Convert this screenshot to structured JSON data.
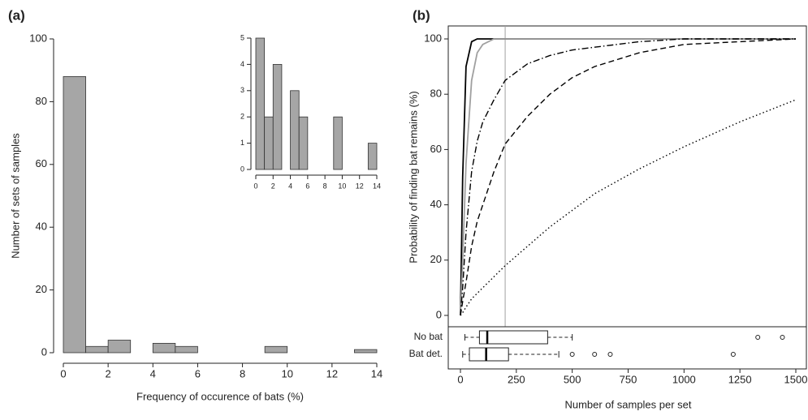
{
  "chart_data": [
    {
      "type": "histogram",
      "panel_label": "(a)",
      "xlabel": "Frequency of occurence of bats (%)",
      "ylabel": "Number of sets of samples",
      "bins": [
        0,
        1,
        2,
        3,
        4,
        5,
        6,
        7,
        8,
        9,
        10,
        11,
        12,
        13,
        14
      ],
      "values": [
        88,
        2,
        4,
        0,
        3,
        2,
        0,
        0,
        0,
        2,
        0,
        0,
        0,
        1
      ],
      "color": "#a6a6a6",
      "xlim": [
        0,
        14
      ],
      "xticks": [
        0,
        2,
        4,
        6,
        8,
        10,
        12,
        14
      ],
      "ylim": [
        0,
        100
      ],
      "yticks": [
        0,
        20,
        40,
        60,
        80,
        100
      ]
    },
    {
      "type": "histogram",
      "bins": [
        0,
        1,
        2,
        3,
        4,
        5,
        6,
        7,
        8,
        9,
        10,
        11,
        12,
        13,
        14
      ],
      "values": [
        5,
        2,
        4,
        0,
        3,
        2,
        0,
        0,
        0,
        2,
        0,
        0,
        0,
        1
      ],
      "color": "#a6a6a6",
      "xlim": [
        0,
        14
      ],
      "xticks": [
        0,
        2,
        4,
        6,
        8,
        10,
        12,
        14
      ],
      "ylim": [
        0,
        5
      ],
      "yticks": [
        0,
        1,
        2,
        3,
        4,
        5
      ]
    },
    {
      "type": "line",
      "panel_label": "(b)",
      "ylabel": "Probability of finding bat remains (%)",
      "x": [
        0,
        10,
        25,
        50,
        75,
        100,
        150,
        200,
        300,
        400,
        500,
        600,
        800,
        1000,
        1250,
        1500
      ],
      "series": [
        {
          "color": "#000000",
          "style": "solid",
          "values": [
            0,
            50,
            90,
            99,
            100,
            100,
            100,
            100,
            100,
            100,
            100,
            100,
            100,
            100,
            100,
            100
          ]
        },
        {
          "color": "#a0a0a0",
          "style": "solid",
          "values": [
            0,
            20,
            55,
            85,
            95,
            98,
            100,
            100,
            100,
            100,
            100,
            100,
            100,
            100,
            100,
            100
          ]
        },
        {
          "color": "#000000",
          "style": "dashdot",
          "values": [
            0,
            10,
            30,
            52,
            63,
            70,
            78,
            85,
            91,
            94,
            96,
            97,
            99,
            100,
            100,
            100
          ]
        },
        {
          "color": "#000000",
          "style": "dashed",
          "values": [
            0,
            5,
            12,
            25,
            34,
            40,
            52,
            62,
            72,
            80,
            86,
            90,
            95,
            98,
            99,
            100
          ]
        },
        {
          "color": "#000000",
          "style": "dotted",
          "values": [
            0,
            1,
            3,
            6,
            8,
            10,
            14,
            18,
            25,
            32,
            38,
            44,
            53,
            61,
            70,
            78
          ]
        }
      ],
      "vline": 200,
      "vline_color": "#a0a0a0",
      "xlim": [
        0,
        1500
      ],
      "ylim": [
        0,
        100
      ],
      "yticks": [
        0,
        20,
        40,
        60,
        80,
        100
      ]
    },
    {
      "type": "box",
      "xlabel": "Number of samples per set",
      "categories": [
        "No bat",
        "Bat det."
      ],
      "stats": [
        {
          "whislo": 20,
          "q1": 85,
          "med": 120,
          "q3": 390,
          "whishi": 500,
          "fliers": [
            1330,
            1440
          ]
        },
        {
          "whislo": 10,
          "q1": 40,
          "med": 115,
          "q3": 215,
          "whishi": 440,
          "fliers": [
            500,
            600,
            670,
            1220
          ]
        }
      ],
      "xlim": [
        0,
        1500
      ],
      "xticks": [
        0,
        250,
        500,
        750,
        1000,
        1250,
        1500
      ]
    }
  ]
}
